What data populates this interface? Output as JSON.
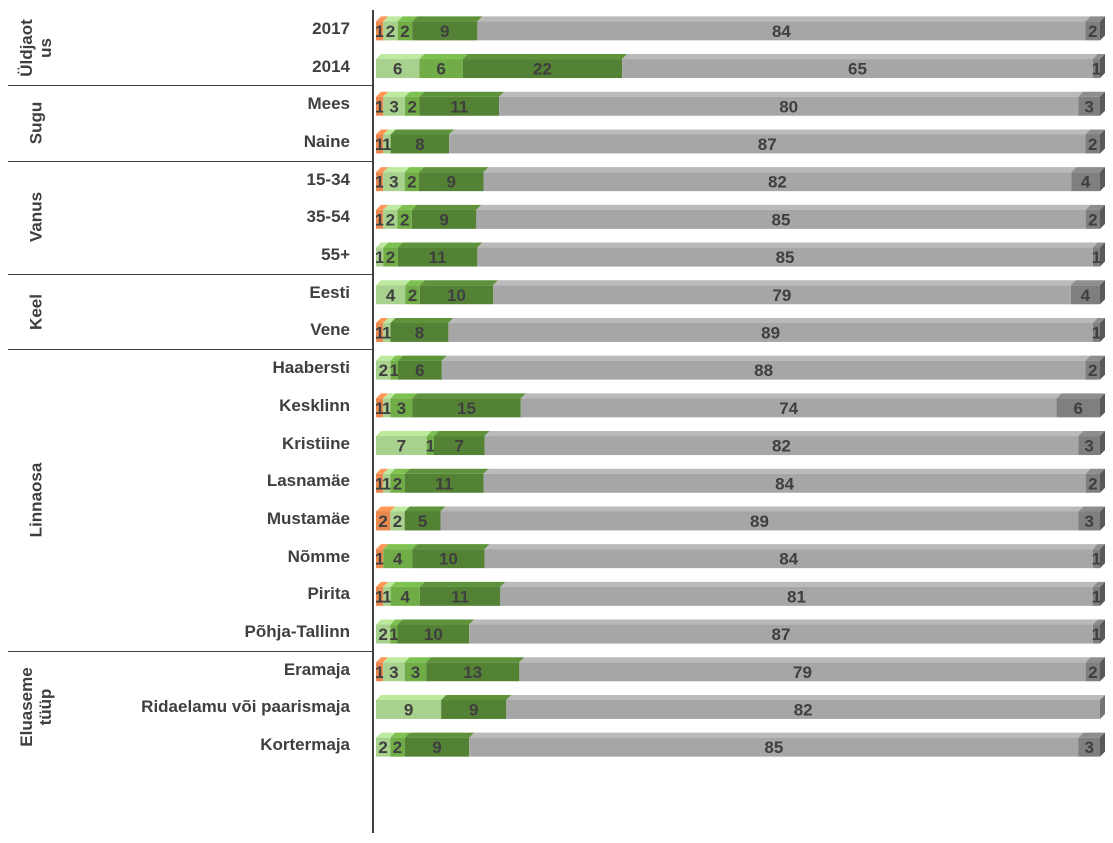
{
  "chart_data": {
    "type": "bar",
    "stacked": true,
    "orientation": "horizontal",
    "xlim": [
      0,
      100
    ],
    "legend": "none",
    "series_colors": [
      "#e8874e",
      "#a9d18e",
      "#70ad47",
      "#548235",
      "#a6a6a6",
      "#7f7f7f"
    ],
    "groups": [
      {
        "label": "Üldjaot\nus",
        "rows": [
          {
            "category": "2017",
            "segments": [
              1,
              2,
              2,
              9,
              84,
              2
            ],
            "labels": [
              "1",
              "2",
              "2",
              "9",
              "84",
              "2"
            ]
          },
          {
            "category": "2014",
            "segments": [
              0,
              6,
              6,
              22,
              65,
              1
            ],
            "labels": [
              "",
              "6",
              "6",
              "22",
              "65",
              "1"
            ]
          }
        ]
      },
      {
        "label": "Sugu",
        "rows": [
          {
            "category": "Mees",
            "segments": [
              1,
              3,
              2,
              11,
              80,
              3
            ],
            "labels": [
              "1",
              "3",
              "2",
              "11",
              "80",
              "3"
            ]
          },
          {
            "category": "Naine",
            "segments": [
              1,
              1,
              0,
              8,
              87,
              2
            ],
            "labels": [
              "1",
              "1",
              "",
              "8",
              "87",
              "2"
            ]
          }
        ]
      },
      {
        "label": "Vanus",
        "rows": [
          {
            "category": "15-34",
            "segments": [
              1,
              3,
              2,
              9,
              82,
              4
            ],
            "labels": [
              "1",
              "3",
              "2",
              "9",
              "82",
              "4"
            ]
          },
          {
            "category": "35-54",
            "segments": [
              1,
              2,
              2,
              9,
              85,
              2
            ],
            "labels": [
              "1",
              "2",
              "2",
              "9",
              "85",
              "2"
            ]
          },
          {
            "category": "55+",
            "segments": [
              0,
              1,
              2,
              11,
              85,
              1
            ],
            "labels": [
              "",
              "1",
              "2",
              "11",
              "85",
              "1"
            ]
          }
        ]
      },
      {
        "label": "Keel",
        "rows": [
          {
            "category": "Eesti",
            "segments": [
              0,
              4,
              2,
              10,
              79,
              4
            ],
            "labels": [
              "",
              "4",
              "2",
              "10",
              "79",
              "4"
            ]
          },
          {
            "category": "Vene",
            "segments": [
              1,
              1,
              0,
              8,
              89,
              1
            ],
            "labels": [
              "1",
              "1",
              "",
              "8",
              "89",
              "1"
            ]
          }
        ]
      },
      {
        "label": "Linnaosa",
        "rows": [
          {
            "category": "Haabersti",
            "segments": [
              0,
              2,
              1,
              6,
              88,
              2
            ],
            "labels": [
              "",
              "2",
              "1",
              "6",
              "88",
              "2"
            ]
          },
          {
            "category": "Kesklinn",
            "segments": [
              1,
              1,
              3,
              15,
              74,
              6
            ],
            "labels": [
              "1",
              "1",
              "3",
              "15",
              "74",
              "6"
            ]
          },
          {
            "category": "Kristiine",
            "segments": [
              0,
              7,
              1,
              7,
              82,
              3
            ],
            "labels": [
              "",
              "7",
              "1",
              "7",
              "82",
              "3"
            ]
          },
          {
            "category": "Lasnamäe",
            "segments": [
              1,
              1,
              2,
              11,
              84,
              2
            ],
            "labels": [
              "1",
              "1",
              "2",
              "11",
              "84",
              "2"
            ]
          },
          {
            "category": "Mustamäe",
            "segments": [
              2,
              2,
              0,
              5,
              89,
              3
            ],
            "labels": [
              "2",
              "2",
              "",
              "5",
              "89",
              "3"
            ]
          },
          {
            "category": "Nõmme",
            "segments": [
              1,
              0,
              4,
              10,
              84,
              1
            ],
            "labels": [
              "1",
              "",
              "4",
              "10",
              "84",
              "1"
            ]
          },
          {
            "category": "Pirita",
            "segments": [
              1,
              1,
              4,
              11,
              81,
              1
            ],
            "labels": [
              "1",
              "1",
              "4",
              "11",
              "81",
              "1"
            ]
          },
          {
            "category": "Põhja-Tallinn",
            "segments": [
              0,
              2,
              1,
              10,
              87,
              1
            ],
            "labels": [
              "",
              "2",
              "1",
              "10",
              "87",
              "1"
            ]
          }
        ]
      },
      {
        "label": "Eluaseme\ntüüp",
        "rows": [
          {
            "category": "Eramaja",
            "segments": [
              1,
              3,
              3,
              13,
              79,
              2
            ],
            "labels": [
              "1",
              "3",
              "3",
              "13",
              "79",
              "2"
            ]
          },
          {
            "category": "Ridaelamu või paarismaja",
            "segments": [
              0,
              9,
              0,
              9,
              82,
              0
            ],
            "labels": [
              "",
              "9",
              "",
              "9",
              "82",
              ""
            ]
          },
          {
            "category": "Kortermaja",
            "segments": [
              0,
              2,
              2,
              9,
              85,
              3
            ],
            "labels": [
              "",
              "2",
              "2",
              "9",
              "85",
              "3"
            ]
          }
        ]
      }
    ]
  }
}
